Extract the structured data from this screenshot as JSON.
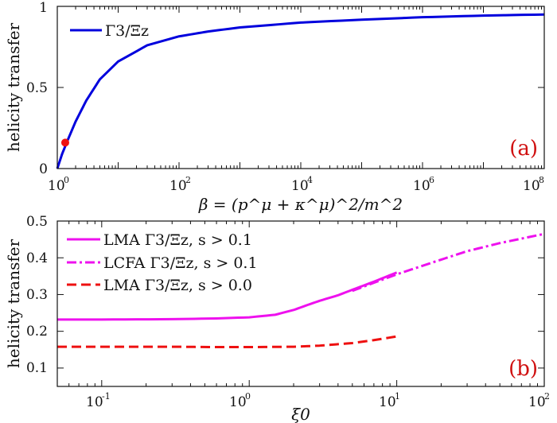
{
  "chart_data": [
    {
      "type": "line",
      "panel_label": "(a)",
      "ylabel": "helicity transfer",
      "xlabel": "β = (p^μ + κ^μ)^2/m^2",
      "x_scale": "log",
      "xlim": [
        1,
        100000000
      ],
      "ylim": [
        0,
        1
      ],
      "yticks": [
        "0",
        "0.5",
        "1"
      ],
      "xticks": [
        {
          "base": "10",
          "exp": "0"
        },
        {
          "base": "10",
          "exp": "2"
        },
        {
          "base": "10",
          "exp": "4"
        },
        {
          "base": "10",
          "exp": "6"
        },
        {
          "base": "10",
          "exp": "8"
        }
      ],
      "legend_position": "top-left",
      "series": [
        {
          "name": "Γ3/Ξz",
          "color": "#0000dd",
          "style": "solid",
          "x": [
            1,
            1.2,
            1.5,
            2,
            3,
            5,
            10,
            30,
            100,
            300,
            1000,
            10000,
            100000,
            1000000,
            10000000,
            100000000
          ],
          "y": [
            0,
            0.09,
            0.18,
            0.29,
            0.42,
            0.55,
            0.66,
            0.76,
            0.815,
            0.845,
            0.87,
            0.9,
            0.918,
            0.933,
            0.943,
            0.95
          ]
        }
      ],
      "markers": [
        {
          "x": 1.35,
          "y": 0.16,
          "color": "#ee1010"
        }
      ]
    },
    {
      "type": "line",
      "panel_label": "(b)",
      "ylabel": "helicity transfer",
      "xlabel": "ξ0",
      "x_scale": "log",
      "xlim": [
        0.05,
        100
      ],
      "ylim": [
        0.05,
        0.5
      ],
      "yticks": [
        "0.1",
        "0.2",
        "0.3",
        "0.4",
        "0.5"
      ],
      "xticks": [
        {
          "base": "10",
          "exp": "-1"
        },
        {
          "base": "10",
          "exp": "0"
        },
        {
          "base": "10",
          "exp": "1"
        },
        {
          "base": "10",
          "exp": "2"
        }
      ],
      "legend_position": "top-left",
      "series": [
        {
          "name": "LMA Γ3/Ξz,  s > 0.1",
          "color": "#ee11ee",
          "style": "solid",
          "x": [
            0.05,
            0.1,
            0.3,
            0.6,
            1,
            1.5,
            2,
            2.5,
            3,
            4,
            5,
            7,
            10
          ],
          "y": [
            0.232,
            0.232,
            0.233,
            0.235,
            0.238,
            0.245,
            0.258,
            0.272,
            0.283,
            0.298,
            0.313,
            0.335,
            0.36
          ]
        },
        {
          "name": "LCFA Γ3/Ξz,  s > 0.1",
          "color": "#ee11ee",
          "style": "dashdot",
          "x": [
            5,
            7,
            10,
            20,
            30,
            50,
            100
          ],
          "y": [
            0.31,
            0.332,
            0.355,
            0.395,
            0.418,
            0.44,
            0.465
          ]
        },
        {
          "name": "LMA Γ3/Ξz,  s > 0.0",
          "color": "#ee1010",
          "style": "dashed",
          "x": [
            0.05,
            0.1,
            0.3,
            0.6,
            1,
            2,
            3,
            5,
            7,
            10
          ],
          "y": [
            0.158,
            0.158,
            0.158,
            0.157,
            0.157,
            0.158,
            0.161,
            0.168,
            0.176,
            0.186
          ]
        }
      ]
    }
  ]
}
